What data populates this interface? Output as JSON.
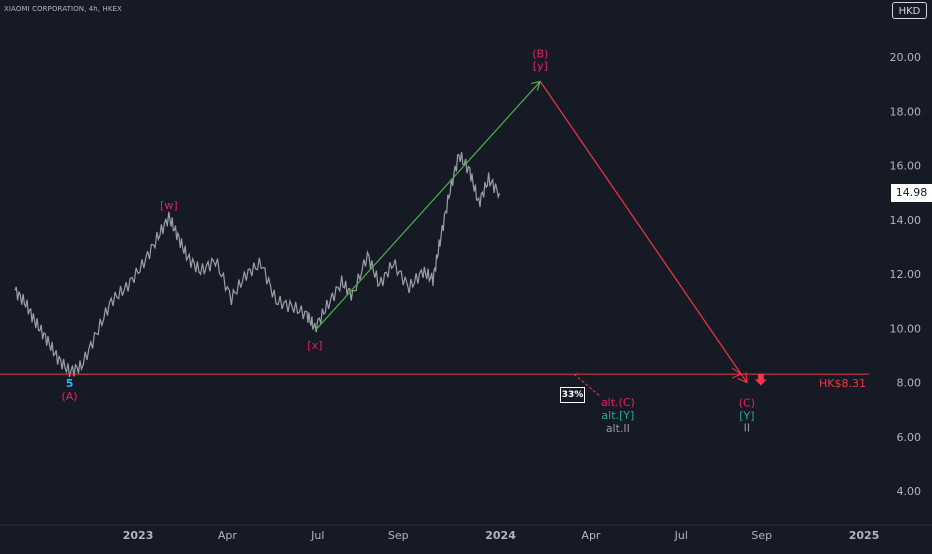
{
  "header": {
    "symbol": "XIAOMI CORPORATION, 4h, HKEX",
    "currency": "HKD"
  },
  "price": {
    "last": "14.98"
  },
  "chart_data": {
    "type": "line",
    "y_axis": {
      "ticks": [
        "20.00",
        "18.00",
        "16.00",
        "14.00",
        "12.00",
        "10.00",
        "8.00",
        "6.00",
        "4.00"
      ],
      "range": [
        3.2,
        21.6
      ]
    },
    "x_axis": {
      "ticks": [
        "2023",
        "Apr",
        "Jul",
        "Sep",
        "2024",
        "Apr",
        "Jul",
        "Sep",
        "2025"
      ]
    },
    "series": [
      {
        "name": "",
        "x": [
          "2022-08-30",
          "2022-09-10",
          "2022-09-20",
          "2022-10-01",
          "2022-10-12",
          "2022-10-24",
          "2022-11-05",
          "2022-11-20",
          "2022-12-05",
          "2022-12-20",
          "2023-01-05",
          "2023-01-20",
          "2023-02-01",
          "2023-02-10",
          "2023-02-20",
          "2023-03-05",
          "2023-03-20",
          "2023-04-05",
          "2023-04-20",
          "2023-05-05",
          "2023-05-20",
          "2023-06-05",
          "2023-06-20",
          "2023-06-28",
          "2023-07-10",
          "2023-07-25",
          "2023-08-05",
          "2023-08-20",
          "2023-09-01",
          "2023-09-15",
          "2023-10-01",
          "2023-10-15",
          "2023-10-25",
          "2023-11-01",
          "2023-11-10",
          "2023-11-20",
          "2023-12-01",
          "2023-12-10",
          "2023-12-20",
          "2023-12-31"
        ],
        "values": [
          11.4,
          10.9,
          10.2,
          9.6,
          8.9,
          8.4,
          8.6,
          9.8,
          11.0,
          11.5,
          12.3,
          13.3,
          14.1,
          13.4,
          12.6,
          12.1,
          12.5,
          11.1,
          12.0,
          12.4,
          11.0,
          10.8,
          10.5,
          10.0,
          10.8,
          11.7,
          11.2,
          12.7,
          11.6,
          12.4,
          11.5,
          12.1,
          11.8,
          13.2,
          14.9,
          16.4,
          15.8,
          14.6,
          15.5,
          14.98
        ]
      }
    ],
    "projection": {
      "points": [
        {
          "x": "2023-06-28",
          "y": 9.9
        },
        {
          "x": "2024-02-10",
          "y": 19.1
        },
        {
          "x": "2024-09-05",
          "y": 8.0
        }
      ],
      "alt_path": [
        {
          "x": "2024-03-15",
          "y": 8.31
        },
        {
          "x": "2024-04-10",
          "y": 7.5
        }
      ]
    },
    "horizontal_line": {
      "value": 8.31,
      "label": "HK$8.31"
    },
    "probability_label": "33%",
    "annotations": {
      "A_5": "5",
      "A_label": "(A)",
      "w_label": "[w]",
      "x_label": "[x]",
      "B_label": "(B)",
      "y_label": "[y]",
      "C_label": "(C)",
      "Y_label": "[Y]",
      "II_label": "II",
      "altC": "alt.(C)",
      "altY": "alt.[Y]",
      "altII": "alt.II"
    },
    "colors": {
      "background": "#161a25",
      "price": "#9c9ea5",
      "up_arrow": "#4caf50",
      "down_arrow": "#f23645",
      "hline": "#f23645",
      "magenta": "#e91e63",
      "cyan": "#29b6f6",
      "teal": "#26a69a",
      "grey_label": "#9598a1"
    }
  }
}
